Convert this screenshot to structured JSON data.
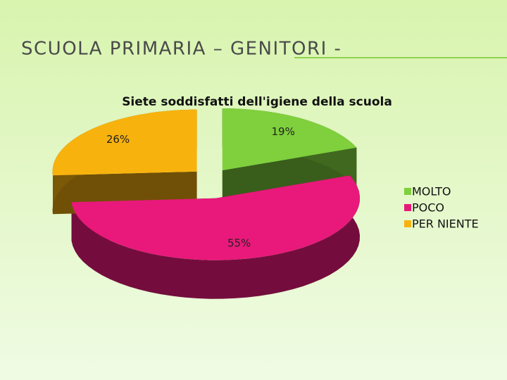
{
  "slide_title": "SCUOLA PRIMARIA – GENITORI -",
  "chart_data": {
    "type": "pie",
    "title": "Siete soddisfatti dell'igiene della scuola",
    "categories": [
      "MOLTO",
      "POCO",
      "PER NIENTE"
    ],
    "values": [
      19,
      55,
      26
    ],
    "value_labels": [
      "19%",
      "55%",
      "26%"
    ],
    "colors": [
      "#7fd03c",
      "#e8197a",
      "#f8b20e"
    ],
    "legend": "right"
  }
}
